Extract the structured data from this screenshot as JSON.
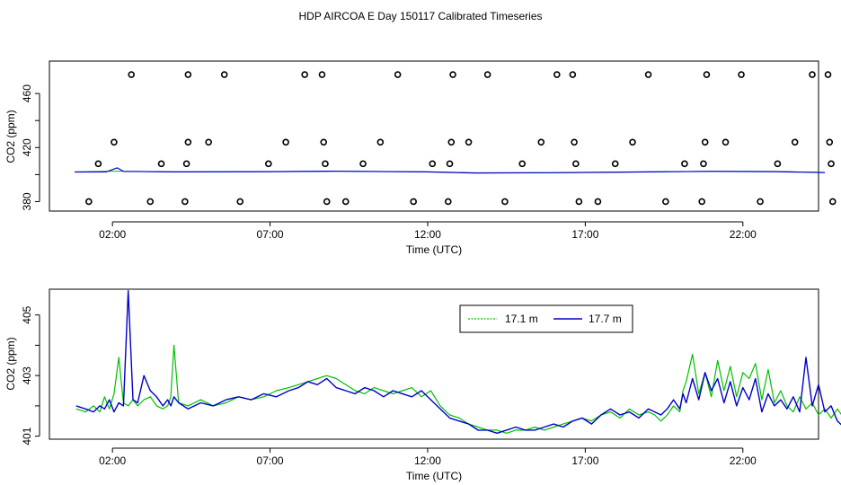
{
  "figure": {
    "title": "HDP AIRCOA E  Day 150117  Calibrated Timeseries"
  },
  "colors": {
    "series_17_1": "#00c000",
    "series_17_7": "#0000cc",
    "axis": "#000000",
    "points": "#000000"
  },
  "chart_data": [
    {
      "type": "scatter",
      "xlabel": "Time (UTC)",
      "ylabel": "CO2 (ppm)",
      "xlim": [
        0,
        24.4
      ],
      "ylim": [
        373,
        484
      ],
      "xticks": [
        2,
        7,
        12,
        17,
        22
      ],
      "xtick_labels": [
        "02:00",
        "07:00",
        "12:00",
        "17:00",
        "22:00"
      ],
      "yticks": [
        380,
        420,
        460
      ],
      "ytick_labels": [
        "380",
        "420",
        "460"
      ],
      "grid": false,
      "series": [
        {
          "marker": "circle",
          "points": [
            [
              1.25,
              380
            ],
            [
              1.55,
              408
            ],
            [
              2.05,
              424
            ],
            [
              2.6,
              474
            ],
            [
              3.2,
              380
            ],
            [
              3.55,
              408
            ],
            [
              4.3,
              380
            ],
            [
              4.35,
              408
            ],
            [
              4.4,
              424
            ],
            [
              4.4,
              474
            ],
            [
              5.05,
              424
            ],
            [
              5.55,
              474
            ],
            [
              6.05,
              380
            ],
            [
              6.95,
              408
            ],
            [
              7.5,
              424
            ],
            [
              8.1,
              474
            ],
            [
              8.65,
              474
            ],
            [
              8.7,
              424
            ],
            [
              8.75,
              408
            ],
            [
              8.8,
              380
            ],
            [
              9.4,
              380
            ],
            [
              9.95,
              408
            ],
            [
              10.5,
              424
            ],
            [
              11.05,
              474
            ],
            [
              11.55,
              380
            ],
            [
              12.15,
              408
            ],
            [
              12.65,
              380
            ],
            [
              12.7,
              408
            ],
            [
              12.75,
              424
            ],
            [
              12.8,
              474
            ],
            [
              13.3,
              424
            ],
            [
              13.9,
              474
            ],
            [
              14.45,
              380
            ],
            [
              15.0,
              408
            ],
            [
              15.6,
              424
            ],
            [
              16.1,
              474
            ],
            [
              16.6,
              474
            ],
            [
              16.65,
              424
            ],
            [
              16.7,
              408
            ],
            [
              16.8,
              380
            ],
            [
              17.4,
              380
            ],
            [
              17.95,
              408
            ],
            [
              18.5,
              424
            ],
            [
              19.0,
              474
            ],
            [
              19.55,
              380
            ],
            [
              20.15,
              408
            ],
            [
              20.7,
              380
            ],
            [
              20.75,
              408
            ],
            [
              20.8,
              424
            ],
            [
              20.85,
              474
            ],
            [
              21.45,
              424
            ],
            [
              21.95,
              474
            ],
            [
              22.55,
              380
            ],
            [
              23.1,
              408
            ],
            [
              23.65,
              424
            ],
            [
              24.2,
              474
            ],
            [
              24.7,
              474
            ],
            [
              24.75,
              424
            ],
            [
              24.8,
              408
            ],
            [
              24.85,
              380
            ]
          ]
        },
        {
          "name": "17.1 m",
          "line": true,
          "points": [
            [
              0.8,
              401.9
            ],
            [
              2.0,
              402.5
            ],
            [
              4.0,
              402.0
            ],
            [
              7.0,
              402.2
            ],
            [
              9.0,
              402.6
            ],
            [
              12.0,
              402.0
            ],
            [
              13.5,
              401.3
            ],
            [
              16.0,
              401.4
            ],
            [
              19.0,
              402.0
            ],
            [
              21.0,
              402.5
            ],
            [
              23.0,
              402.3
            ],
            [
              24.6,
              401.6
            ]
          ]
        },
        {
          "name": "17.7 m",
          "line": true,
          "points": [
            [
              0.8,
              401.9
            ],
            [
              1.8,
              402.0
            ],
            [
              2.15,
              405.0
            ],
            [
              2.35,
              402.4
            ],
            [
              4.0,
              402.0
            ],
            [
              7.0,
              402.2
            ],
            [
              9.0,
              402.5
            ],
            [
              12.0,
              402.0
            ],
            [
              13.5,
              401.2
            ],
            [
              16.0,
              401.4
            ],
            [
              19.0,
              402.0
            ],
            [
              21.0,
              402.4
            ],
            [
              23.0,
              402.2
            ],
            [
              24.6,
              401.5
            ]
          ]
        }
      ]
    },
    {
      "type": "line",
      "xlabel": "Time (UTC)",
      "ylabel": "CO2 (ppm)",
      "xlim": [
        0,
        24.4
      ],
      "ylim": [
        400.9,
        405.85
      ],
      "xticks": [
        2,
        7,
        12,
        17,
        22
      ],
      "xtick_labels": [
        "02:00",
        "07:00",
        "12:00",
        "17:00",
        "22:00"
      ],
      "yticks": [
        401,
        403,
        405
      ],
      "ytick_labels": [
        "401",
        "403",
        "405"
      ],
      "grid": false,
      "legend": "top-right",
      "series": [
        {
          "name": "17.1 m",
          "x": [
            0.85,
            1.15,
            1.4,
            1.6,
            1.75,
            1.9,
            2.05,
            2.2,
            2.35,
            2.5,
            2.65,
            2.8,
            3.0,
            3.2,
            3.4,
            3.6,
            3.75,
            3.85,
            3.95,
            4.1,
            4.4,
            4.8,
            5.2,
            5.6,
            6.0,
            6.4,
            6.8,
            7.2,
            7.6,
            7.9,
            8.2,
            8.5,
            8.8,
            9.1,
            9.4,
            9.7,
            10.0,
            10.3,
            10.6,
            10.9,
            11.2,
            11.5,
            11.8,
            12.1,
            12.4,
            12.7,
            13.0,
            13.3,
            13.6,
            13.9,
            14.2,
            14.5,
            14.8,
            15.1,
            15.4,
            15.7,
            16.0,
            16.3,
            16.6,
            16.9,
            17.2,
            17.5,
            17.8,
            18.1,
            18.4,
            18.7,
            19.0,
            19.2,
            19.4,
            19.6,
            19.8,
            20.0,
            20.1,
            20.2,
            20.4,
            20.6,
            20.8,
            21.0,
            21.2,
            21.4,
            21.6,
            21.8,
            22.0,
            22.2,
            22.4,
            22.6,
            22.8,
            23.0,
            23.2,
            23.4,
            23.6,
            23.8,
            24.0,
            24.2,
            24.4,
            24.6,
            24.8,
            25.0,
            25.2
          ],
          "y": [
            401.9,
            401.8,
            402.0,
            401.8,
            402.3,
            401.9,
            402.4,
            403.6,
            402.1,
            402.0,
            402.2,
            402.0,
            402.2,
            402.3,
            402.0,
            401.9,
            402.0,
            402.3,
            404.0,
            402.1,
            402.0,
            402.2,
            402.0,
            402.1,
            402.3,
            402.2,
            402.3,
            402.5,
            402.6,
            402.7,
            402.8,
            402.9,
            403.0,
            402.9,
            402.7,
            402.5,
            402.4,
            402.6,
            402.5,
            402.4,
            402.5,
            402.6,
            402.3,
            402.5,
            402.0,
            401.7,
            401.6,
            401.4,
            401.3,
            401.2,
            401.2,
            401.1,
            401.2,
            401.2,
            401.3,
            401.2,
            401.3,
            401.4,
            401.5,
            401.6,
            401.5,
            401.7,
            401.8,
            401.6,
            401.9,
            401.7,
            401.8,
            401.7,
            401.5,
            401.7,
            402.0,
            401.8,
            402.5,
            402.8,
            403.7,
            402.4,
            403.1,
            402.3,
            403.5,
            402.5,
            403.3,
            402.3,
            403.1,
            402.9,
            403.4,
            402.2,
            403.2,
            402.1,
            402.5,
            402.0,
            401.8,
            402.3,
            401.9,
            402.1,
            401.7,
            401.9,
            401.6,
            401.9,
            401.6
          ]
        },
        {
          "name": "17.7 m",
          "x": [
            0.85,
            1.15,
            1.4,
            1.6,
            1.75,
            1.9,
            2.05,
            2.2,
            2.35,
            2.5,
            2.65,
            2.8,
            3.0,
            3.2,
            3.4,
            3.6,
            3.75,
            3.85,
            3.95,
            4.1,
            4.4,
            4.8,
            5.2,
            5.6,
            6.0,
            6.4,
            6.8,
            7.2,
            7.6,
            7.9,
            8.2,
            8.5,
            8.8,
            9.1,
            9.4,
            9.7,
            10.0,
            10.3,
            10.6,
            10.9,
            11.2,
            11.5,
            11.8,
            12.1,
            12.4,
            12.7,
            13.0,
            13.3,
            13.6,
            13.9,
            14.2,
            14.5,
            14.8,
            15.1,
            15.4,
            15.7,
            16.0,
            16.3,
            16.6,
            16.9,
            17.2,
            17.5,
            17.8,
            18.1,
            18.4,
            18.7,
            19.0,
            19.2,
            19.4,
            19.6,
            19.8,
            20.0,
            20.1,
            20.2,
            20.4,
            20.6,
            20.8,
            21.0,
            21.2,
            21.4,
            21.6,
            21.8,
            22.0,
            22.2,
            22.4,
            22.6,
            22.8,
            23.0,
            23.2,
            23.4,
            23.6,
            23.8,
            24.0,
            24.2,
            24.4,
            24.6,
            24.8,
            25.0,
            25.2
          ],
          "y": [
            402.0,
            401.9,
            401.8,
            402.0,
            401.9,
            402.2,
            401.8,
            402.1,
            402.0,
            405.8,
            402.2,
            402.1,
            403.0,
            402.5,
            402.3,
            402.0,
            402.2,
            402.0,
            402.3,
            402.1,
            401.9,
            402.1,
            402.0,
            402.2,
            402.3,
            402.2,
            402.4,
            402.3,
            402.5,
            402.6,
            402.8,
            402.7,
            402.9,
            402.6,
            402.5,
            402.4,
            402.6,
            402.5,
            402.3,
            402.5,
            402.4,
            402.3,
            402.5,
            402.2,
            401.9,
            401.6,
            401.5,
            401.4,
            401.2,
            401.2,
            401.1,
            401.2,
            401.3,
            401.2,
            401.2,
            401.3,
            401.4,
            401.3,
            401.5,
            401.6,
            401.4,
            401.7,
            401.9,
            401.7,
            401.8,
            401.6,
            401.9,
            401.8,
            401.7,
            401.9,
            402.2,
            401.9,
            402.4,
            402.1,
            402.9,
            402.2,
            403.1,
            402.5,
            402.9,
            402.1,
            402.8,
            402.0,
            402.6,
            402.2,
            402.9,
            401.8,
            402.4,
            402.0,
            402.2,
            401.9,
            402.3,
            401.8,
            403.6,
            402.0,
            402.7,
            401.8,
            402.0,
            401.5,
            401.3
          ]
        }
      ]
    }
  ]
}
